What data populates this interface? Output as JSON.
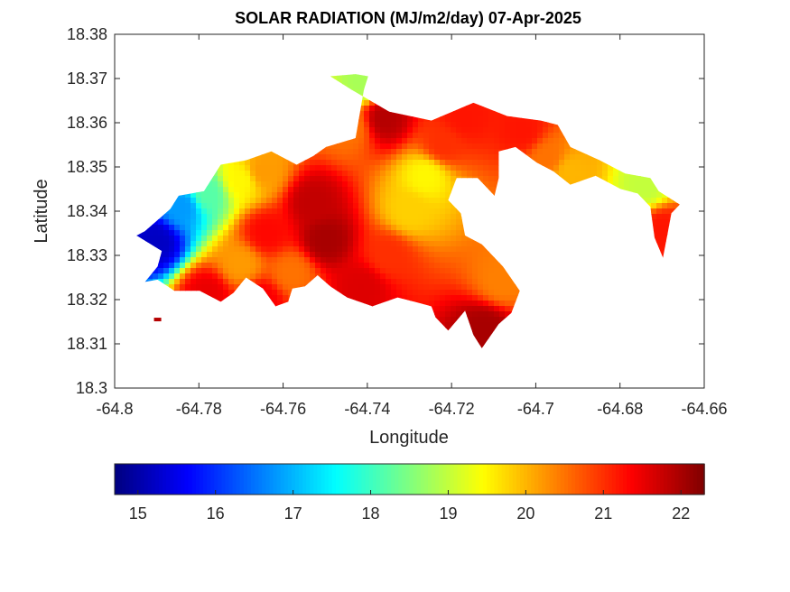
{
  "chart_data": {
    "type": "heatmap",
    "title": "SOLAR RADIATION (MJ/m2/day) 07-Apr-2025",
    "xlabel": "Longitude",
    "ylabel": "Latitude",
    "xlim": [
      -64.8,
      -64.66
    ],
    "ylim": [
      18.3,
      18.38
    ],
    "x_ticks": [
      "-64.8",
      "-64.78",
      "-64.76",
      "-64.74",
      "-64.72",
      "-64.7",
      "-64.68",
      "-64.66"
    ],
    "y_ticks": [
      "18.3",
      "18.31",
      "18.32",
      "18.33",
      "18.34",
      "18.35",
      "18.36",
      "18.37",
      "18.38"
    ],
    "colorbar": {
      "colormap": "jet",
      "range": [
        14.7,
        22.3
      ],
      "ticks": [
        "15",
        "16",
        "17",
        "18",
        "19",
        "20",
        "21",
        "22"
      ]
    },
    "region_outline": [
      [
        -64.7928,
        18.3355
      ],
      [
        -64.7868,
        18.3405
      ],
      [
        -64.7848,
        18.3435
      ],
      [
        -64.7788,
        18.3445
      ],
      [
        -64.7748,
        18.3505
      ],
      [
        -64.7688,
        18.3515
      ],
      [
        -64.7628,
        18.3535
      ],
      [
        -64.7568,
        18.3505
      ],
      [
        -64.7528,
        18.3525
      ],
      [
        -64.7498,
        18.3545
      ],
      [
        -64.7428,
        18.3565
      ],
      [
        -64.7408,
        18.3675
      ],
      [
        -64.7398,
        18.3705
      ],
      [
        -64.7428,
        18.371
      ],
      [
        -64.7488,
        18.3705
      ],
      [
        -64.7438,
        18.3675
      ],
      [
        -64.7348,
        18.3625
      ],
      [
        -64.7248,
        18.3605
      ],
      [
        -64.7198,
        18.3625
      ],
      [
        -64.7148,
        18.3645
      ],
      [
        -64.7068,
        18.3615
      ],
      [
        -64.6988,
        18.3605
      ],
      [
        -64.6948,
        18.3595
      ],
      [
        -64.6918,
        18.3545
      ],
      [
        -64.6848,
        18.3515
      ],
      [
        -64.6788,
        18.3485
      ],
      [
        -64.6728,
        18.3475
      ],
      [
        -64.6708,
        18.3445
      ],
      [
        -64.6658,
        18.3415
      ],
      [
        -64.6678,
        18.3395
      ],
      [
        -64.6688,
        18.3345
      ],
      [
        -64.6698,
        18.3295
      ],
      [
        -64.6718,
        18.334
      ],
      [
        -64.6728,
        18.341
      ],
      [
        -64.6758,
        18.344
      ],
      [
        -64.6798,
        18.345
      ],
      [
        -64.6858,
        18.348
      ],
      [
        -64.6918,
        18.346
      ],
      [
        -64.6958,
        18.349
      ],
      [
        -64.6998,
        18.351
      ],
      [
        -64.7048,
        18.3545
      ],
      [
        -64.7088,
        18.3535
      ],
      [
        -64.7088,
        18.3475
      ],
      [
        -64.7098,
        18.3435
      ],
      [
        -64.7138,
        18.3475
      ],
      [
        -64.7188,
        18.3475
      ],
      [
        -64.7208,
        18.3425
      ],
      [
        -64.7178,
        18.3395
      ],
      [
        -64.7168,
        18.3345
      ],
      [
        -64.7128,
        18.3325
      ],
      [
        -64.7078,
        18.3275
      ],
      [
        -64.7038,
        18.322
      ],
      [
        -64.7058,
        18.317
      ],
      [
        -64.7088,
        18.3145
      ],
      [
        -64.7128,
        18.309
      ],
      [
        -64.7148,
        18.312
      ],
      [
        -64.7168,
        18.3175
      ],
      [
        -64.7208,
        18.313
      ],
      [
        -64.7238,
        18.316
      ],
      [
        -64.7248,
        18.3185
      ],
      [
        -64.7288,
        18.3195
      ],
      [
        -64.7328,
        18.3205
      ],
      [
        -64.7388,
        18.3185
      ],
      [
        -64.7448,
        18.3205
      ],
      [
        -64.7488,
        18.323
      ],
      [
        -64.7518,
        18.3255
      ],
      [
        -64.7548,
        18.323
      ],
      [
        -64.7578,
        18.3225
      ],
      [
        -64.7588,
        18.3195
      ],
      [
        -64.7618,
        18.3185
      ],
      [
        -64.7648,
        18.3225
      ],
      [
        -64.7688,
        18.325
      ],
      [
        -64.7718,
        18.3215
      ],
      [
        -64.7748,
        18.3195
      ],
      [
        -64.7798,
        18.322
      ],
      [
        -64.7858,
        18.322
      ],
      [
        -64.7898,
        18.3245
      ],
      [
        -64.7928,
        18.324
      ],
      [
        -64.7898,
        18.3275
      ],
      [
        -64.7888,
        18.331
      ],
      [
        -64.7948,
        18.3345
      ]
    ],
    "islet": [
      -64.7898,
      18.3155
    ],
    "hotspots": [
      {
        "lon": -64.75,
        "lat": 18.3335,
        "value": 22.0
      },
      {
        "lon": -64.753,
        "lat": 18.342,
        "value": 21.8
      },
      {
        "lon": -64.736,
        "lat": 18.361,
        "value": 21.9
      },
      {
        "lon": -64.712,
        "lat": 18.3135,
        "value": 22.0
      },
      {
        "lon": -64.741,
        "lat": 18.323,
        "value": 21.6
      },
      {
        "lon": -64.765,
        "lat": 18.32,
        "value": 21.4
      },
      {
        "lon": -64.778,
        "lat": 18.3215,
        "value": 21.5
      },
      {
        "lon": -64.717,
        "lat": 18.361,
        "value": 21.2
      },
      {
        "lon": -64.703,
        "lat": 18.358,
        "value": 21.2
      },
      {
        "lon": -64.67,
        "lat": 18.336,
        "value": 21.2
      },
      {
        "lon": -64.764,
        "lat": 18.335,
        "value": 21.3
      },
      {
        "lon": -64.726,
        "lat": 18.348,
        "value": 19.5
      },
      {
        "lon": -64.73,
        "lat": 18.34,
        "value": 19.8
      },
      {
        "lon": -64.744,
        "lat": 18.359,
        "value": 20.5
      },
      {
        "lon": -64.79,
        "lat": 18.333,
        "value": 15.2
      },
      {
        "lon": -64.784,
        "lat": 18.341,
        "value": 16.8
      },
      {
        "lon": -64.778,
        "lat": 18.344,
        "value": 18.2
      },
      {
        "lon": -64.77,
        "lat": 18.347,
        "value": 19.5
      },
      {
        "lon": -64.765,
        "lat": 18.349,
        "value": 20.2
      },
      {
        "lon": -64.7415,
        "lat": 18.369,
        "value": 18.8
      },
      {
        "lon": -64.708,
        "lat": 18.324,
        "value": 20.4
      },
      {
        "lon": -64.735,
        "lat": 18.33,
        "value": 21.0
      },
      {
        "lon": -64.758,
        "lat": 18.326,
        "value": 20.5
      },
      {
        "lon": -64.77,
        "lat": 18.328,
        "value": 20.2
      },
      {
        "lon": -64.697,
        "lat": 18.352,
        "value": 20.5
      },
      {
        "lon": -64.692,
        "lat": 18.349,
        "value": 20.0
      },
      {
        "lon": -64.674,
        "lat": 18.3455,
        "value": 19.0
      },
      {
        "lon": -64.722,
        "lat": 18.355,
        "value": 21.0
      }
    ]
  }
}
